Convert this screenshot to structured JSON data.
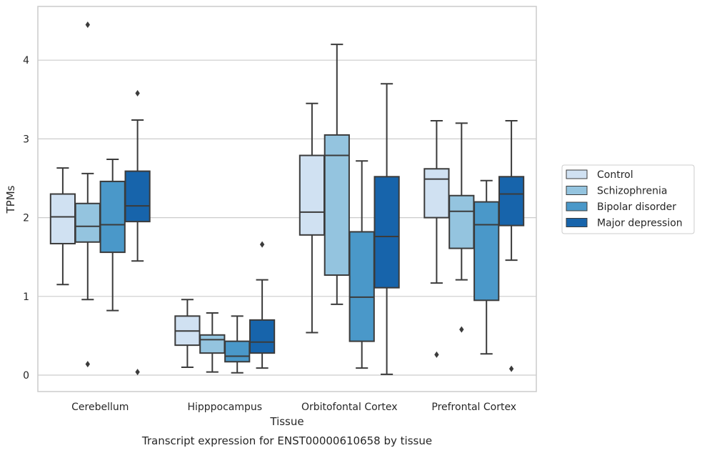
{
  "chart_data": {
    "type": "box",
    "xlabel": "Tissue",
    "ylabel": "TPMs",
    "caption": "Transcript expression for ENST00000610658 by tissue",
    "ylim": [
      -0.2,
      4.7
    ],
    "yticks": [
      0,
      1,
      2,
      3,
      4
    ],
    "grid": "horizontal",
    "legend_position": "right",
    "categories": [
      "Cerebellum",
      "Hipppocampus",
      "Orbitofontal Cortex",
      "Prefrontal Cortex"
    ],
    "series": [
      {
        "name": "Control",
        "color": "#d0e1f2",
        "boxes": [
          {
            "whisker_low": 1.15,
            "q1": 1.67,
            "median": 2.01,
            "q3": 2.3,
            "whisker_high": 2.63,
            "outliers": []
          },
          {
            "whisker_low": 0.1,
            "q1": 0.38,
            "median": 0.56,
            "q3": 0.75,
            "whisker_high": 0.96,
            "outliers": []
          },
          {
            "whisker_low": 0.54,
            "q1": 1.78,
            "median": 2.07,
            "q3": 2.79,
            "whisker_high": 3.45,
            "outliers": []
          },
          {
            "whisker_low": 1.17,
            "q1": 2.0,
            "median": 2.49,
            "q3": 2.62,
            "whisker_high": 3.23,
            "outliers": [
              0.26
            ]
          }
        ]
      },
      {
        "name": "Schizophrenia",
        "color": "#94c4df",
        "boxes": [
          {
            "whisker_low": 0.96,
            "q1": 1.69,
            "median": 1.89,
            "q3": 2.18,
            "whisker_high": 2.56,
            "outliers": [
              4.45,
              0.14
            ]
          },
          {
            "whisker_low": 0.04,
            "q1": 0.28,
            "median": 0.45,
            "q3": 0.51,
            "whisker_high": 0.79,
            "outliers": []
          },
          {
            "whisker_low": 0.9,
            "q1": 1.27,
            "median": 2.79,
            "q3": 3.05,
            "whisker_high": 4.2,
            "outliers": []
          },
          {
            "whisker_low": 1.21,
            "q1": 1.61,
            "median": 2.08,
            "q3": 2.28,
            "whisker_high": 3.2,
            "outliers": [
              0.58
            ]
          }
        ]
      },
      {
        "name": "Bipolar disorder",
        "color": "#4a98c9",
        "boxes": [
          {
            "whisker_low": 0.82,
            "q1": 1.56,
            "median": 1.91,
            "q3": 2.46,
            "whisker_high": 2.74,
            "outliers": []
          },
          {
            "whisker_low": 0.03,
            "q1": 0.17,
            "median": 0.24,
            "q3": 0.43,
            "whisker_high": 0.75,
            "outliers": []
          },
          {
            "whisker_low": 0.09,
            "q1": 0.43,
            "median": 0.99,
            "q3": 1.82,
            "whisker_high": 2.72,
            "outliers": []
          },
          {
            "whisker_low": 0.27,
            "q1": 0.95,
            "median": 1.91,
            "q3": 2.2,
            "whisker_high": 2.47,
            "outliers": []
          }
        ]
      },
      {
        "name": "Major depression",
        "color": "#1764ab",
        "boxes": [
          {
            "whisker_low": 1.45,
            "q1": 1.95,
            "median": 2.15,
            "q3": 2.59,
            "whisker_high": 3.24,
            "outliers": [
              3.58,
              0.04
            ]
          },
          {
            "whisker_low": 0.09,
            "q1": 0.28,
            "median": 0.42,
            "q3": 0.7,
            "whisker_high": 1.21,
            "outliers": [
              1.66
            ]
          },
          {
            "whisker_low": 0.01,
            "q1": 1.11,
            "median": 1.76,
            "q3": 2.52,
            "whisker_high": 3.7,
            "outliers": []
          },
          {
            "whisker_low": 1.46,
            "q1": 1.9,
            "median": 2.3,
            "q3": 2.52,
            "whisker_high": 3.23,
            "outliers": [
              0.08
            ]
          }
        ]
      }
    ]
  }
}
